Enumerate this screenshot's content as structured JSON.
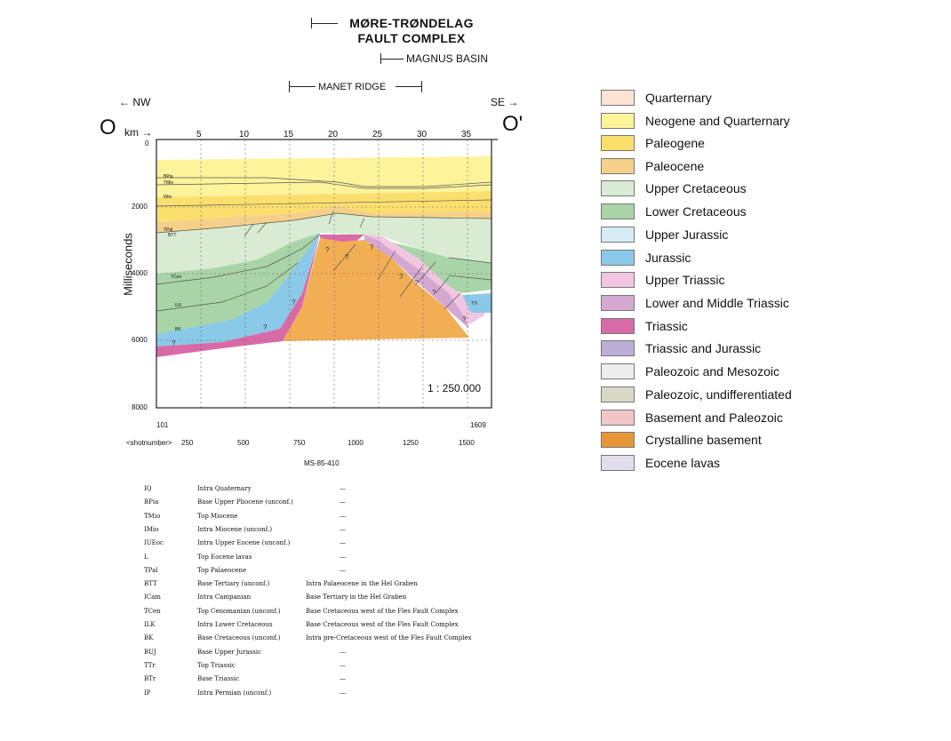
{
  "header": {
    "fault_complex": "MØRE-TRØNDELAG\nFAULT COMPLEX",
    "fault_complex_line1": "MØRE-TRØNDELAG",
    "fault_complex_line2": "FAULT COMPLEX",
    "magnus_basin": "MAGNUS BASIN",
    "manet_ridge": "MANET RIDGE"
  },
  "section": {
    "left_dir": "NW",
    "right_dir": "SE",
    "left_end": "O",
    "right_end": "O'",
    "km_label": "km",
    "km_ticks": [
      "5",
      "10",
      "15",
      "20",
      "25",
      "30",
      "35"
    ],
    "y_label": "Milliseconds",
    "y_ticks": [
      "0",
      "2000",
      "4000",
      "6000",
      "8000"
    ],
    "scale": "1 : 250.000",
    "shot_start": "101",
    "shot_end": "1609",
    "shot_label": "<shotnumber>",
    "shot_ticks": [
      "250",
      "500",
      "750",
      "1000",
      "1250",
      "1500"
    ],
    "line_name": "MS-85-410",
    "horizon_labels": [
      "BPia",
      "TMio",
      "IMio",
      "TPal",
      "BTT",
      "TCen",
      "ILK",
      "BK",
      "TTr"
    ],
    "question_mark": "?"
  },
  "legend": {
    "items": [
      {
        "label": "Quarternary",
        "color": "#fde3d3"
      },
      {
        "label": "Neogene and Quarternary",
        "color": "#fdf39b"
      },
      {
        "label": "Paleogene",
        "color": "#fbdf6e"
      },
      {
        "label": "Paleocene",
        "color": "#f5d08a"
      },
      {
        "label": "Upper Cretaceous",
        "color": "#d9ecd3"
      },
      {
        "label": "Lower Cretaceous",
        "color": "#a9d4a7"
      },
      {
        "label": "Upper Jurassic",
        "color": "#d6ecf7"
      },
      {
        "label": "Jurassic",
        "color": "#8ac9e8"
      },
      {
        "label": "Upper Triassic",
        "color": "#f1c6e0"
      },
      {
        "label": "Lower and Middle Triassic",
        "color": "#d6a8d1"
      },
      {
        "label": "Triassic",
        "color": "#d96aa8"
      },
      {
        "label": "Triassic and Jurassic",
        "color": "#bcaed6"
      },
      {
        "label": "Paleozoic and Mesozoic",
        "color": "#ededed"
      },
      {
        "label": "Paleozoic, undifferentiated",
        "color": "#d9d9c6"
      },
      {
        "label": "Basement and Paleozoic",
        "color": "#f2c6c6"
      },
      {
        "label": "Crystalline basement",
        "color": "#e8963a"
      },
      {
        "label": "Eocene lavas",
        "color": "#e2ddec"
      }
    ]
  },
  "horizons": [
    {
      "code": "IQ",
      "name": "Intra Quaternary",
      "note": "",
      "dash": "—"
    },
    {
      "code": "BPia",
      "name": "Base Upper Pliocene (unconf.)",
      "note": "",
      "dash": "—"
    },
    {
      "code": "TMio",
      "name": "Top Miocene",
      "note": "",
      "dash": "—"
    },
    {
      "code": "IMio",
      "name": "Intra Miocene (unconf.)",
      "note": "",
      "dash": "—"
    },
    {
      "code": "IUEoc",
      "name": "Intra Upper Eocene (unconf.)",
      "note": "",
      "dash": "—"
    },
    {
      "code": "L",
      "name": "Top Eocene lavas",
      "note": "",
      "dash": "—"
    },
    {
      "code": "TPal",
      "name": "Top Palaeocene",
      "note": "",
      "dash": "—"
    },
    {
      "code": "BTT",
      "name": "Base Tertiary (unconf.)",
      "note": "Intra Palaeocene in the Hel Graben",
      "dash": ""
    },
    {
      "code": "ICam",
      "name": "Intra Campanian",
      "note": "Base Tertiary in the Hel Graben",
      "dash": ""
    },
    {
      "code": "TCen",
      "name": "Top Cenomanian (unconf.)",
      "note": "Base Cretaceous west of the Fles Fault Complex",
      "dash": ""
    },
    {
      "code": "ILK",
      "name": "Intra Lower Cretaceous",
      "note": "Base Cretaceous west of the Fles Fault Complex",
      "dash": ""
    },
    {
      "code": "BK",
      "name": "Base Cretaceous (unconf.)",
      "note": "Intra pre-Cretaceous west of the Fles Fault Complex",
      "dash": ""
    },
    {
      "code": "BUJ",
      "name": "Base Upper Jurassic",
      "note": "",
      "dash": "—"
    },
    {
      "code": "TTr",
      "name": "Top Triassic",
      "note": "",
      "dash": "—"
    },
    {
      "code": "BTr",
      "name": "Base Triassic",
      "note": "",
      "dash": "—"
    },
    {
      "code": "IP",
      "name": "Intra Permian (unconf.)",
      "note": "",
      "dash": "—"
    }
  ]
}
